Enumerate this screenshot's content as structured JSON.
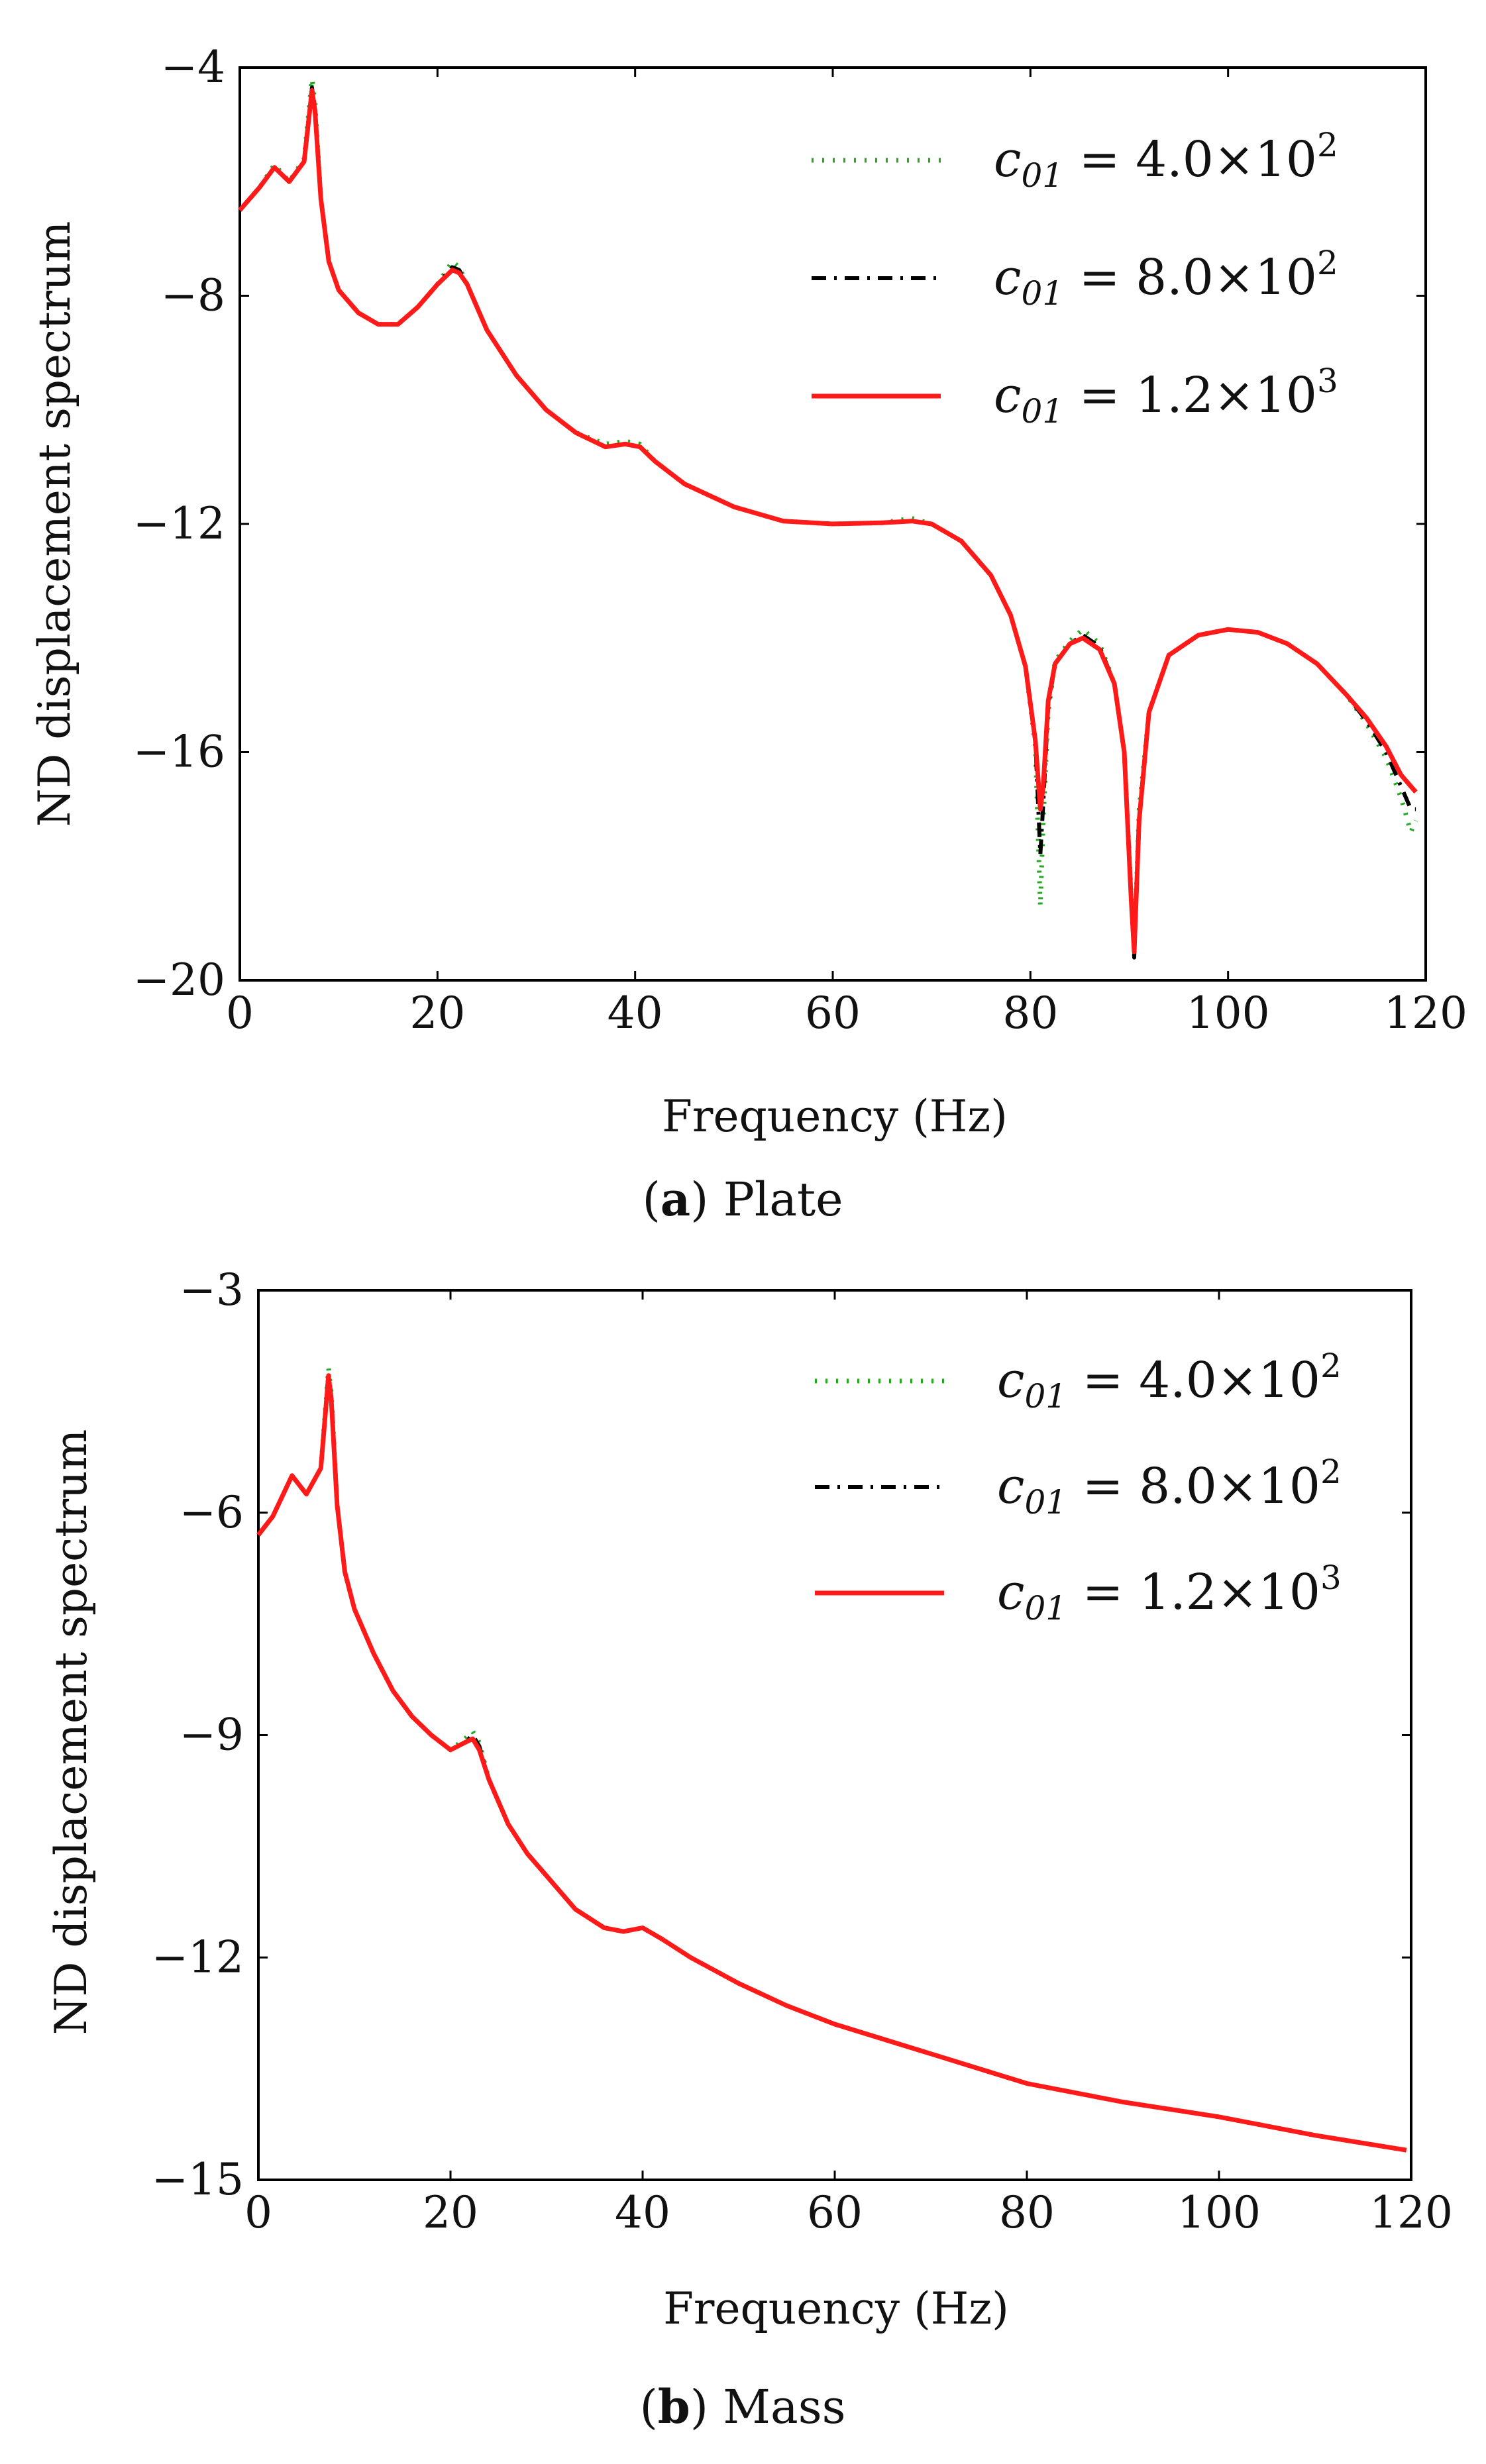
{
  "chart_data": [
    {
      "type": "line",
      "id": "plate",
      "caption": {
        "letter": "a",
        "text": " Plate"
      },
      "xlabel": "Frequency (Hz)",
      "ylabel": "ND displacement spectrum",
      "xlim": [
        0,
        120
      ],
      "ylim": [
        -20,
        -4
      ],
      "xticks": [
        0,
        20,
        40,
        60,
        80,
        100,
        120
      ],
      "yticks": [
        -20,
        -16,
        -12,
        -8,
        -4
      ],
      "ytick_labels": [
        "−20",
        "−16",
        "−12",
        "−8",
        "−4"
      ],
      "legend_position": "top-right",
      "series": [
        {
          "name": "c01 = 4.0×10^2",
          "label": {
            "base": "c",
            "sub": "01",
            "eq": " = 4.0×10",
            "sup": "2"
          },
          "color": "#22aa22",
          "style": "dotted",
          "x": [
            0,
            2,
            3.5,
            5,
            6.5,
            7.3,
            7.6,
            8.2,
            9,
            10,
            12,
            14,
            16,
            18,
            20,
            21.5,
            22.2,
            23,
            25,
            28,
            31,
            34,
            37,
            39,
            40.5,
            42,
            45,
            50,
            55,
            60,
            65,
            68,
            70,
            73,
            76,
            78,
            79.5,
            80.5,
            81,
            81.3,
            81.8,
            82.5,
            84,
            85.3,
            87,
            88.5,
            89.5,
            90.2,
            90.6,
            91,
            92,
            94,
            97,
            100,
            103,
            106,
            109,
            112,
            114,
            116,
            117.5,
            118.5,
            119
          ],
          "values": [
            -6.5,
            -6.1,
            -5.7,
            -6.0,
            -5.6,
            -4.2,
            -4.6,
            -6.3,
            -7.4,
            -7.9,
            -8.3,
            -8.5,
            -8.5,
            -8.2,
            -7.8,
            -7.4,
            -7.5,
            -7.8,
            -8.6,
            -9.4,
            -10.0,
            -10.4,
            -10.6,
            -10.55,
            -10.6,
            -10.9,
            -11.3,
            -11.7,
            -11.95,
            -12.0,
            -11.98,
            -11.9,
            -12.0,
            -12.3,
            -12.9,
            -13.6,
            -14.5,
            -15.9,
            -18.7,
            -17.2,
            -15.3,
            -14.4,
            -14.05,
            -13.85,
            -14.1,
            -14.8,
            -16.0,
            -18.5,
            -19.0,
            -17.0,
            -15.3,
            -14.3,
            -13.95,
            -13.85,
            -13.9,
            -14.1,
            -14.45,
            -15.0,
            -15.5,
            -16.1,
            -16.8,
            -17.4,
            -17.2
          ]
        },
        {
          "name": "c01 = 8.0×10^2",
          "label": {
            "base": "c",
            "sub": "01",
            "eq": " = 8.0×10",
            "sup": "2"
          },
          "color": "#000000",
          "style": "dashdot",
          "x": [
            0,
            2,
            3.5,
            5,
            6.5,
            7.3,
            7.6,
            8.2,
            9,
            10,
            12,
            14,
            16,
            18,
            20,
            21.5,
            22.2,
            23,
            25,
            28,
            31,
            34,
            37,
            39,
            40.5,
            42,
            45,
            50,
            55,
            60,
            65,
            68,
            70,
            73,
            76,
            78,
            79.5,
            80.5,
            81,
            81.3,
            81.8,
            82.5,
            84,
            85.3,
            87,
            88.5,
            89.5,
            90.2,
            90.5,
            91,
            92,
            94,
            97,
            100,
            103,
            106,
            109,
            112,
            114,
            116,
            117.5,
            118.5,
            119
          ],
          "values": [
            -6.5,
            -6.1,
            -5.75,
            -6.0,
            -5.65,
            -4.35,
            -4.7,
            -6.3,
            -7.4,
            -7.9,
            -8.3,
            -8.5,
            -8.5,
            -8.2,
            -7.8,
            -7.5,
            -7.55,
            -7.8,
            -8.6,
            -9.4,
            -10.0,
            -10.4,
            -10.65,
            -10.6,
            -10.65,
            -10.9,
            -11.3,
            -11.7,
            -11.95,
            -12.0,
            -11.98,
            -11.95,
            -12.0,
            -12.3,
            -12.9,
            -13.6,
            -14.5,
            -15.8,
            -17.8,
            -16.9,
            -15.2,
            -14.45,
            -14.1,
            -13.95,
            -14.15,
            -14.8,
            -16.0,
            -18.6,
            -19.6,
            -17.2,
            -15.3,
            -14.3,
            -13.95,
            -13.85,
            -13.9,
            -14.1,
            -14.45,
            -15.0,
            -15.45,
            -16.0,
            -16.6,
            -17.0,
            -17.0
          ]
        },
        {
          "name": "c01 = 1.2×10^3",
          "label": {
            "base": "c",
            "sub": "01",
            "eq": " = 1.2×10",
            "sup": "3"
          },
          "color": "#ff1a1a",
          "style": "solid",
          "x": [
            0,
            2,
            3.5,
            5,
            6.5,
            7.3,
            7.6,
            8.2,
            9,
            10,
            12,
            14,
            16,
            18,
            20,
            21.5,
            22.2,
            23,
            25,
            28,
            31,
            34,
            37,
            39,
            40.5,
            42,
            45,
            50,
            55,
            60,
            65,
            68,
            70,
            73,
            76,
            78,
            79.5,
            80.5,
            81,
            81.3,
            81.8,
            82.5,
            84,
            85.3,
            87,
            88.5,
            89.5,
            90.2,
            90.5,
            91,
            92,
            94,
            97,
            100,
            103,
            106,
            109,
            112,
            114,
            116,
            117.5,
            118.5,
            119
          ],
          "values": [
            -6.5,
            -6.1,
            -5.75,
            -6.0,
            -5.65,
            -4.4,
            -4.75,
            -6.3,
            -7.4,
            -7.9,
            -8.3,
            -8.5,
            -8.5,
            -8.2,
            -7.8,
            -7.55,
            -7.6,
            -7.8,
            -8.6,
            -9.4,
            -10.0,
            -10.4,
            -10.65,
            -10.6,
            -10.65,
            -10.9,
            -11.3,
            -11.7,
            -11.95,
            -12.0,
            -11.98,
            -11.95,
            -12.0,
            -12.3,
            -12.9,
            -13.6,
            -14.5,
            -15.8,
            -17.0,
            -16.6,
            -15.1,
            -14.45,
            -14.1,
            -14.0,
            -14.2,
            -14.8,
            -16.0,
            -18.6,
            -19.5,
            -17.2,
            -15.3,
            -14.3,
            -13.95,
            -13.85,
            -13.9,
            -14.1,
            -14.45,
            -15.0,
            -15.4,
            -15.9,
            -16.4,
            -16.6,
            -16.7
          ]
        }
      ]
    },
    {
      "type": "line",
      "id": "mass",
      "caption": {
        "letter": "b",
        "text": " Mass"
      },
      "xlabel": "Frequency (Hz)",
      "ylabel": "ND displacement spectrum",
      "xlim": [
        0,
        120
      ],
      "ylim": [
        -15,
        -3
      ],
      "xticks": [
        0,
        20,
        40,
        60,
        80,
        100,
        120
      ],
      "yticks": [
        -15,
        -12,
        -9,
        -6,
        -3
      ],
      "ytick_labels": [
        "−15",
        "−12",
        "−9",
        "−6",
        "−3"
      ],
      "legend_position": "top-right",
      "series": [
        {
          "name": "c01 = 4.0×10^2",
          "label": {
            "base": "c",
            "sub": "01",
            "eq": " = 4.0×10",
            "sup": "2"
          },
          "color": "#22aa22",
          "style": "dotted",
          "x": [
            0,
            1.5,
            3.5,
            5,
            6.5,
            7.3,
            7.6,
            8.2,
            9,
            10,
            12,
            14,
            16,
            18,
            20,
            21.5,
            22.3,
            23,
            24,
            26,
            28,
            30,
            33,
            36,
            38,
            40,
            42,
            45,
            50,
            55,
            60,
            70,
            80,
            90,
            100,
            110,
            119.5
          ],
          "values": [
            -6.3,
            -6.05,
            -5.5,
            -5.75,
            -5.4,
            -4.05,
            -4.4,
            -5.9,
            -6.8,
            -7.3,
            -7.9,
            -8.4,
            -8.75,
            -9.0,
            -9.2,
            -9.05,
            -8.95,
            -9.1,
            -9.6,
            -10.2,
            -10.6,
            -10.9,
            -11.35,
            -11.6,
            -11.65,
            -11.6,
            -11.75,
            -12.0,
            -12.35,
            -12.65,
            -12.9,
            -13.3,
            -13.7,
            -13.95,
            -14.15,
            -14.4,
            -14.6
          ]
        },
        {
          "name": "c01 = 8.0×10^2",
          "label": {
            "base": "c",
            "sub": "01",
            "eq": " = 8.0×10",
            "sup": "2"
          },
          "color": "#000000",
          "style": "dashdot",
          "x": [
            0,
            1.5,
            3.5,
            5,
            6.5,
            7.3,
            7.6,
            8.2,
            9,
            10,
            12,
            14,
            16,
            18,
            20,
            21.5,
            22.3,
            23,
            24,
            26,
            28,
            30,
            33,
            36,
            38,
            40,
            42,
            45,
            50,
            55,
            60,
            70,
            80,
            90,
            100,
            110,
            119.5
          ],
          "values": [
            -6.3,
            -6.05,
            -5.5,
            -5.75,
            -5.4,
            -4.1,
            -4.45,
            -5.9,
            -6.8,
            -7.3,
            -7.9,
            -8.4,
            -8.75,
            -9.0,
            -9.2,
            -9.1,
            -9.0,
            -9.15,
            -9.6,
            -10.2,
            -10.6,
            -10.9,
            -11.35,
            -11.6,
            -11.65,
            -11.6,
            -11.75,
            -12.0,
            -12.35,
            -12.65,
            -12.9,
            -13.3,
            -13.7,
            -13.95,
            -14.15,
            -14.4,
            -14.6
          ]
        },
        {
          "name": "c01 = 1.2×10^3",
          "label": {
            "base": "c",
            "sub": "01",
            "eq": " = 1.2×10",
            "sup": "3"
          },
          "color": "#ff1a1a",
          "style": "solid",
          "x": [
            0,
            1.5,
            3.5,
            5,
            6.5,
            7.3,
            7.6,
            8.2,
            9,
            10,
            12,
            14,
            16,
            18,
            20,
            21.5,
            22.3,
            23,
            24,
            26,
            28,
            30,
            33,
            36,
            38,
            40,
            42,
            45,
            50,
            55,
            60,
            70,
            80,
            90,
            100,
            110,
            119.5
          ],
          "values": [
            -6.3,
            -6.05,
            -5.5,
            -5.75,
            -5.4,
            -4.15,
            -4.5,
            -5.9,
            -6.8,
            -7.3,
            -7.9,
            -8.4,
            -8.75,
            -9.0,
            -9.2,
            -9.1,
            -9.05,
            -9.2,
            -9.6,
            -10.2,
            -10.6,
            -10.9,
            -11.35,
            -11.6,
            -11.65,
            -11.6,
            -11.75,
            -12.0,
            -12.35,
            -12.65,
            -12.9,
            -13.3,
            -13.7,
            -13.95,
            -14.15,
            -14.4,
            -14.6
          ]
        }
      ]
    }
  ]
}
